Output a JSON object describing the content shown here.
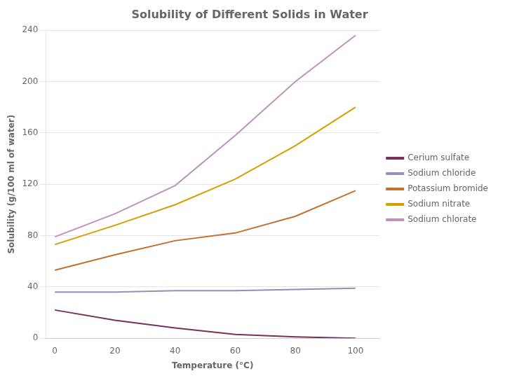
{
  "chart_data": {
    "type": "line",
    "title": "Solubility of Different Solids in Water",
    "xlabel": "Temperature (°C)",
    "ylabel": "Solubility (g/100 ml of water)",
    "x": [
      0,
      20,
      40,
      60,
      80,
      100
    ],
    "series": [
      {
        "name": "Cerium sulfate",
        "color": "#7B3055",
        "values": [
          22,
          14,
          8,
          3,
          1,
          0
        ]
      },
      {
        "name": "Sodium chloride",
        "color": "#9090B8",
        "values": [
          36,
          36,
          37,
          37,
          38,
          39
        ]
      },
      {
        "name": "Potassium bromide",
        "color": "#C07030",
        "values": [
          53,
          65,
          76,
          82,
          95,
          115
        ]
      },
      {
        "name": "Sodium nitrate",
        "color": "#D4A000",
        "values": [
          73,
          88,
          104,
          124,
          150,
          180
        ]
      },
      {
        "name": "Sodium chlorate",
        "color": "#C090C0",
        "values": [
          79,
          97,
          119,
          158,
          200,
          236
        ]
      }
    ],
    "xlim": [
      -3,
      108
    ],
    "xticks": [
      0,
      20,
      40,
      60,
      80,
      100
    ],
    "ylim": [
      0,
      240
    ],
    "yticks": [
      0,
      40,
      80,
      120,
      160,
      200,
      240
    ],
    "grid": "y",
    "legend": "right"
  }
}
